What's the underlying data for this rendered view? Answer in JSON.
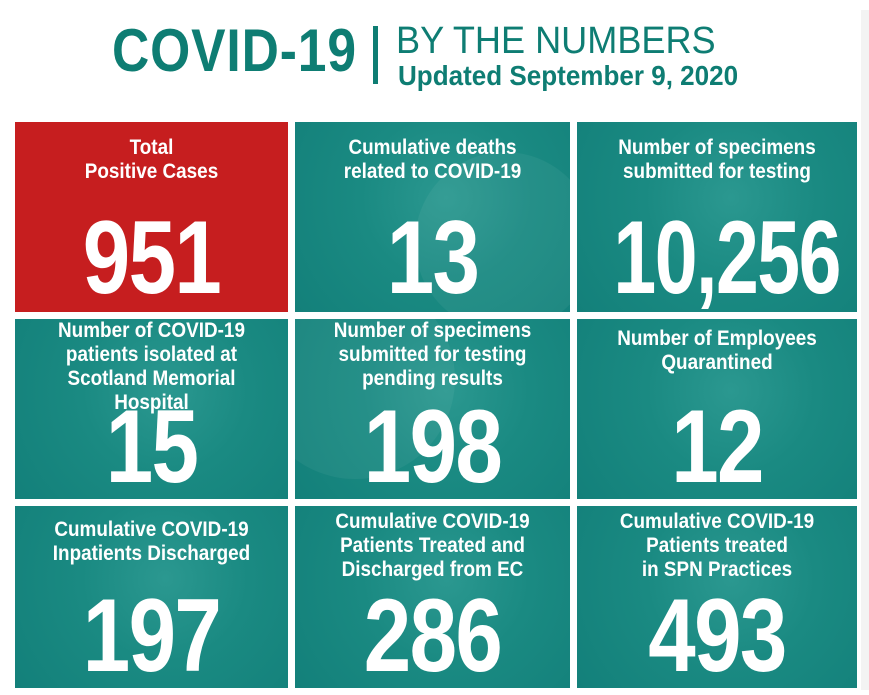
{
  "header": {
    "title": "COVID-19",
    "subtitle": "BY THE NUMBERS",
    "updated": "Updated September 9, 2020"
  },
  "colors": {
    "teal": "#1a8a82",
    "title_teal": "#0e7d73",
    "red": "#c61e1f",
    "white": "#ffffff"
  },
  "tiles": [
    {
      "label": "Total\nPositive Cases",
      "value": "951"
    },
    {
      "label": "Cumulative deaths\nrelated to COVID-19",
      "value": "13"
    },
    {
      "label": "Number of specimens\nsubmitted for testing",
      "value": "10,256"
    },
    {
      "label": "Number of COVID-19\npatients isolated at\nScotland Memorial Hospital",
      "value": "15"
    },
    {
      "label": "Number of specimens\nsubmitted for testing\npending results",
      "value": "198"
    },
    {
      "label": "Number of Employees\nQuarantined",
      "value": "12"
    },
    {
      "label": "Cumulative COVID-19\nInpatients Discharged",
      "value": "197"
    },
    {
      "label": "Cumulative COVID-19\nPatients Treated and\nDischarged from EC",
      "value": "286"
    },
    {
      "label": "Cumulative COVID-19\nPatients treated\nin SPN Practices",
      "value": "493"
    }
  ]
}
